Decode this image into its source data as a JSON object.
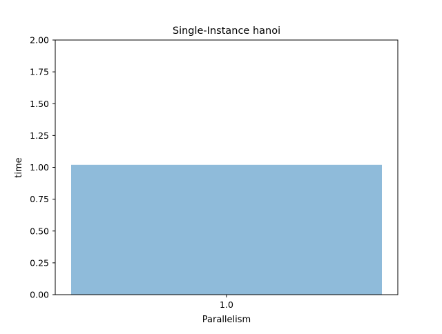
{
  "chart_data": {
    "type": "bar",
    "title": "Single-Instance hanoi",
    "xlabel": "Parallelism",
    "ylabel": "time",
    "categories": [
      "1.0"
    ],
    "values": [
      1.02
    ],
    "ylim": [
      0,
      2.0
    ],
    "yticks": [
      "0.00",
      "0.25",
      "0.50",
      "0.75",
      "1.00",
      "1.25",
      "1.50",
      "1.75",
      "2.00"
    ],
    "grid": false,
    "bar_color": "#8fbbda"
  }
}
